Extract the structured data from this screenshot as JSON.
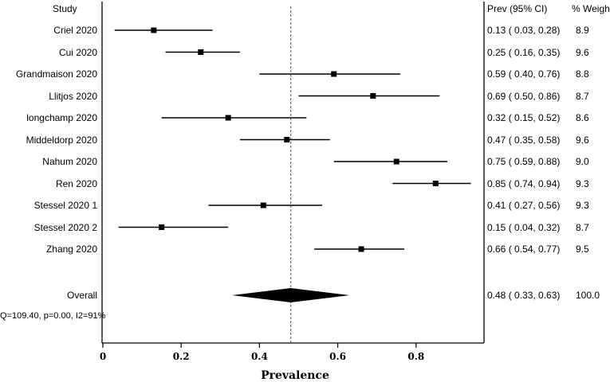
{
  "chart_data": {
    "type": "forest",
    "xlabel": "Prevalence",
    "xlim": [
      0,
      1
    ],
    "xticks": [
      "0",
      "0.2",
      "0.4",
      "0.6",
      "0.8"
    ],
    "headers": {
      "study": "Study",
      "ci": "Prev (95% CI)",
      "weight": "% Weight"
    },
    "studies": [
      {
        "name": "Criel 2020",
        "est": 0.13,
        "lo": 0.03,
        "hi": 0.28,
        "ci_text": "0.13 ( 0.03, 0.28)",
        "weight": "8.9"
      },
      {
        "name": "Cui 2020",
        "est": 0.25,
        "lo": 0.16,
        "hi": 0.35,
        "ci_text": "0.25 ( 0.16, 0.35)",
        "weight": "9.6"
      },
      {
        "name": "Grandmaison 2020",
        "est": 0.59,
        "lo": 0.4,
        "hi": 0.76,
        "ci_text": "0.59 ( 0.40, 0.76)",
        "weight": "8.8"
      },
      {
        "name": "Llitjos 2020",
        "est": 0.69,
        "lo": 0.5,
        "hi": 0.86,
        "ci_text": "0.69 ( 0.50, 0.86)",
        "weight": "8.7"
      },
      {
        "name": "longchamp 2020",
        "est": 0.32,
        "lo": 0.15,
        "hi": 0.52,
        "ci_text": "0.32 ( 0.15, 0.52)",
        "weight": "8.6"
      },
      {
        "name": "Middeldorp 2020",
        "est": 0.47,
        "lo": 0.35,
        "hi": 0.58,
        "ci_text": "0.47 ( 0.35, 0.58)",
        "weight": "9.6"
      },
      {
        "name": "Nahum 2020",
        "est": 0.75,
        "lo": 0.59,
        "hi": 0.88,
        "ci_text": "0.75 ( 0.59, 0.88)",
        "weight": "9.0"
      },
      {
        "name": "Ren 2020",
        "est": 0.85,
        "lo": 0.74,
        "hi": 0.94,
        "ci_text": "0.85 ( 0.74, 0.94)",
        "weight": "9.3"
      },
      {
        "name": "Stessel 2020 1",
        "est": 0.41,
        "lo": 0.27,
        "hi": 0.56,
        "ci_text": "0.41 ( 0.27, 0.56)",
        "weight": "9.3"
      },
      {
        "name": "Stessel 2020 2",
        "est": 0.15,
        "lo": 0.04,
        "hi": 0.32,
        "ci_text": "0.15 ( 0.04, 0.32)",
        "weight": "8.7"
      },
      {
        "name": "Zhang 2020",
        "est": 0.66,
        "lo": 0.54,
        "hi": 0.77,
        "ci_text": "0.66 ( 0.54, 0.77)",
        "weight": "9.5"
      }
    ],
    "overall": {
      "name": "Overall",
      "est": 0.48,
      "lo": 0.33,
      "hi": 0.63,
      "ci_text": "0.48 ( 0.33, 0.63)",
      "weight": "100.0"
    },
    "heterogeneity": "Q=109.40, p=0.00, I2=91%",
    "reference_line": 0.48
  }
}
